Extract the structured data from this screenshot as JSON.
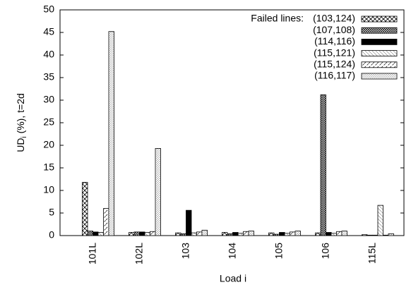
{
  "chart_data": {
    "type": "bar",
    "ylabel": {
      "main": "UD",
      "sub": "i",
      "rest": " (%), t=2d"
    },
    "xlabel": "Load i",
    "legend_title": "Failed lines:",
    "legend": "upper right",
    "categories": [
      "101L",
      "102L",
      "103",
      "104",
      "105",
      "106",
      "115L"
    ],
    "series": [
      {
        "name": "(103,124)",
        "pattern": "crosshatch",
        "values": [
          11.8,
          0.7,
          0.6,
          0.7,
          0.6,
          0.6,
          0.2
        ]
      },
      {
        "name": "(107,108)",
        "pattern": "densecross",
        "values": [
          1.0,
          0.8,
          0.4,
          0.4,
          0.3,
          31.2,
          0.1
        ]
      },
      {
        "name": "(114,116)",
        "pattern": "solid",
        "values": [
          0.8,
          0.8,
          5.6,
          0.7,
          0.7,
          0.7,
          0.1
        ]
      },
      {
        "name": "(115,121)",
        "pattern": "diagonal",
        "values": [
          0.7,
          0.7,
          0.6,
          0.5,
          0.5,
          0.5,
          6.7
        ]
      },
      {
        "name": "(115,124)",
        "pattern": "dashdiag",
        "values": [
          6.0,
          0.9,
          0.8,
          0.9,
          0.8,
          0.9,
          0.1
        ]
      },
      {
        "name": "(116,117)",
        "pattern": "dotted",
        "values": [
          45.2,
          19.3,
          1.2,
          1.0,
          1.0,
          1.0,
          0.4
        ]
      }
    ],
    "ylim": [
      0,
      50
    ],
    "yticks": [
      0,
      5,
      10,
      15,
      20,
      25,
      30,
      35,
      40,
      45,
      50
    ]
  }
}
